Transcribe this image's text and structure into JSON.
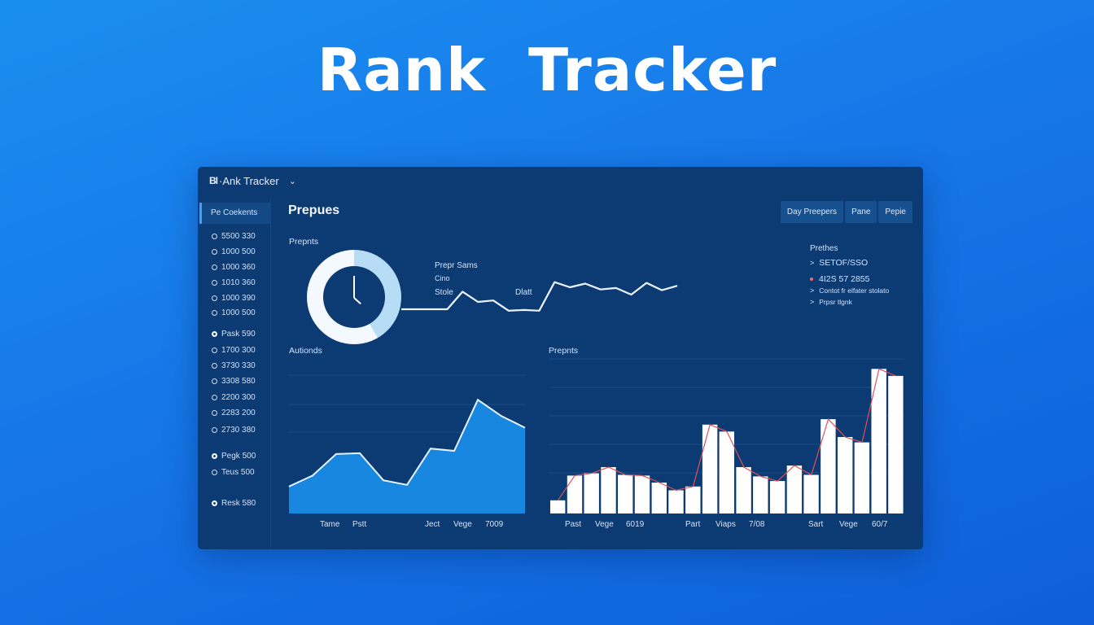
{
  "hero": {
    "title": "Rank   Tracker"
  },
  "window": {
    "logo": "BI",
    "title": "·Ank Tracker",
    "chevron_icon": "chevron-down-icon",
    "chevron": "⌄"
  },
  "sidebar": {
    "active_tab": "Pe Coekents",
    "items": [
      {
        "label": "5500 330",
        "selected": false
      },
      {
        "label": "1000 500",
        "selected": false
      },
      {
        "label": "1000 360",
        "selected": false
      },
      {
        "label": "1010 360",
        "selected": false
      },
      {
        "label": "1000 390",
        "selected": false
      },
      {
        "label": "1000 500",
        "selected": false
      },
      {
        "label": "Pask 590",
        "selected": true
      },
      {
        "label": "1700 300",
        "selected": false
      },
      {
        "label": "3730 330",
        "selected": false
      },
      {
        "label": "3308 580",
        "selected": false
      },
      {
        "label": "2200 300",
        "selected": false
      },
      {
        "label": "2283 200",
        "selected": false
      },
      {
        "label": "2730 380",
        "selected": false
      },
      {
        "label": "Pegk 500",
        "selected": true
      },
      {
        "label": "Teus 500",
        "selected": false
      },
      {
        "label": "Resk 580",
        "selected": true
      }
    ]
  },
  "main": {
    "title": "Prepues",
    "buttons": [
      "Day Preepers",
      "Pane",
      "Pepie"
    ],
    "donut_section_label": "Prepnts",
    "spark": {
      "title": "Prepr Sams",
      "sub": "Cino",
      "label_left": "Stole",
      "label_mid": "Dlatt"
    },
    "info": {
      "heading": "Prethes",
      "items": [
        {
          "icon": "caret-right-icon",
          "text": "SETOF/SSO",
          "style": "big"
        },
        {
          "icon": "bullet-icon",
          "text": "4I2S 57 2855",
          "style": "big"
        },
        {
          "icon": "caret-right-icon",
          "text": "Contot fr elfater stolato",
          "style": "small"
        },
        {
          "icon": "caret-right-icon",
          "text": "Prpsr tlgnk",
          "style": "small"
        }
      ]
    },
    "area_section_label": "Autionds",
    "bar_section_label": "Prepnts"
  },
  "chart_data": [
    {
      "type": "pie",
      "title": "Prepnts",
      "slices": [
        {
          "label": "light",
          "value": 42,
          "color": "#b7dcf6"
        },
        {
          "label": "white",
          "value": 58,
          "color": "#f4f9ff"
        }
      ]
    },
    {
      "type": "line",
      "title": "Prepr Sams",
      "x": [
        0,
        1,
        2,
        3,
        4,
        5,
        6,
        7,
        8,
        9,
        10,
        11,
        12,
        13,
        14,
        15,
        16,
        17,
        18
      ],
      "values": [
        30,
        30,
        30,
        30,
        54,
        40,
        42,
        28,
        29,
        28,
        67,
        60,
        65,
        57,
        59,
        50,
        66,
        56,
        62
      ],
      "color": "#eaf4ff"
    },
    {
      "type": "area",
      "title": "Autionds",
      "x_tick_labels": [
        "Tame",
        "Pstt",
        "Ject",
        "Vege",
        "7009"
      ],
      "values": [
        35,
        49,
        77,
        78,
        43,
        37,
        84,
        81,
        147,
        126,
        111
      ],
      "ylim": [
        0,
        200
      ],
      "grid": true,
      "fill": "#1787e0",
      "stroke": "#e6f3ff"
    },
    {
      "type": "bar",
      "title": "Prepnts",
      "x_tick_labels": [
        "Past",
        "Vege",
        "6019",
        "Part",
        "Viaps",
        "7/08",
        "Sart",
        "Vege",
        "60/7"
      ],
      "values": [
        17,
        49,
        52,
        60,
        50,
        49,
        40,
        30,
        35,
        115,
        106,
        60,
        48,
        42,
        62,
        50,
        122,
        99,
        92,
        187,
        178
      ],
      "ylim": [
        0,
        200
      ],
      "grid": true,
      "bar_color": "#ffffff",
      "outline_color": "#e0505a"
    }
  ]
}
